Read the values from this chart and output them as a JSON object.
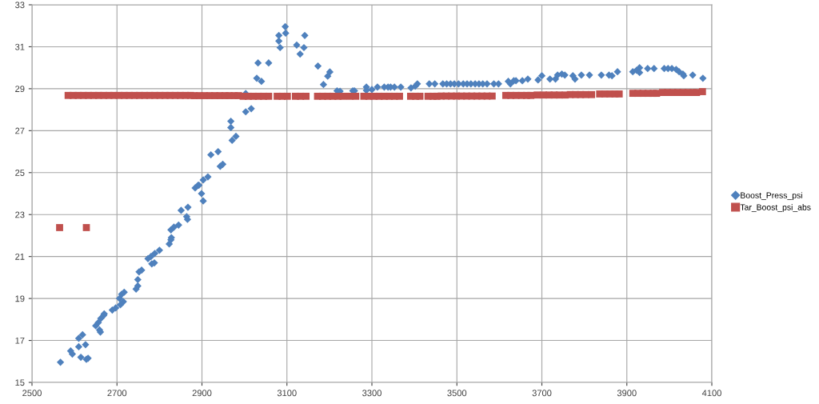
{
  "chart_data": {
    "type": "scatter",
    "xlim": [
      2500,
      4100
    ],
    "ylim": [
      15,
      33
    ],
    "xticks": [
      2500,
      2700,
      2900,
      3100,
      3300,
      3500,
      3700,
      3900,
      4100
    ],
    "yticks": [
      15,
      17,
      19,
      21,
      23,
      25,
      27,
      29,
      31,
      33
    ],
    "grid": true,
    "legend": "right",
    "series": [
      {
        "name": "Boost_Press_psi",
        "color": "#4f81bd",
        "marker": "diamond",
        "x": [
          2567,
          2591,
          2595,
          2610,
          2619,
          2610,
          2615,
          2626,
          2632,
          2628,
          2650,
          2656,
          2662,
          2669,
          2670,
          2659,
          2661,
          2689,
          2697,
          2706,
          2711,
          2717,
          2708,
          2715,
          2745,
          2749,
          2749,
          2752,
          2758,
          2773,
          2780,
          2789,
          2800,
          2782,
          2788,
          2823,
          2827,
          2828,
          2827,
          2834,
          2845,
          2851,
          2867,
          2864,
          2866,
          2884,
          2891,
          2893,
          2899,
          2903,
          2903,
          2914,
          2943,
          2949,
          2921,
          2938,
          2968,
          2968,
          2971,
          2980,
          3003,
          3003,
          3016,
          3029,
          3040,
          3032,
          3057,
          3081,
          3081,
          3084,
          3096,
          3097,
          3123,
          3140,
          3131,
          3142,
          3173,
          3186,
          3196,
          3201,
          3218,
          3225,
          3255,
          3259,
          3287,
          3287,
          3300,
          3313,
          3329,
          3338,
          3344,
          3353,
          3368,
          3392,
          3402,
          3407,
          3435,
          3448,
          3467,
          3476,
          3485,
          3494,
          3504,
          3515,
          3524,
          3533,
          3543,
          3552,
          3561,
          3571,
          3587,
          3598,
          3621,
          3634,
          3626,
          3639,
          3654,
          3667,
          3691,
          3700,
          3719,
          3732,
          3737,
          3747,
          3754,
          3773,
          3778,
          3793,
          3812,
          3840,
          3858,
          3865,
          3878,
          3914,
          3923,
          3930,
          3930,
          3949,
          3964,
          3988,
          3997,
          4006,
          4016,
          4023,
          4032,
          4034,
          4055,
          4079
        ],
        "values": [
          15.96,
          16.5,
          16.35,
          17.1,
          17.27,
          16.7,
          16.2,
          16.8,
          16.15,
          16.1,
          17.7,
          17.85,
          18.05,
          18.2,
          18.27,
          17.5,
          17.4,
          18.45,
          18.55,
          19.0,
          19.2,
          19.3,
          18.7,
          18.85,
          19.45,
          19.6,
          19.9,
          20.27,
          20.35,
          20.9,
          21.0,
          21.15,
          21.3,
          20.65,
          20.7,
          21.6,
          21.8,
          21.9,
          22.27,
          22.4,
          22.5,
          23.2,
          23.35,
          22.9,
          22.77,
          24.27,
          24.4,
          24.4,
          24.0,
          23.65,
          24.65,
          24.8,
          25.3,
          25.4,
          25.85,
          26.0,
          27.45,
          27.15,
          26.54,
          26.73,
          28.77,
          27.9,
          28.05,
          29.5,
          29.35,
          30.23,
          30.23,
          31.54,
          31.27,
          30.96,
          31.96,
          31.65,
          31.08,
          30.96,
          30.65,
          31.54,
          30.08,
          29.2,
          29.6,
          29.8,
          28.9,
          28.88,
          28.9,
          28.9,
          29.08,
          28.92,
          28.96,
          29.08,
          29.08,
          29.08,
          29.08,
          29.08,
          29.08,
          29.04,
          29.12,
          29.23,
          29.23,
          29.23,
          29.23,
          29.23,
          29.23,
          29.23,
          29.23,
          29.23,
          29.23,
          29.23,
          29.23,
          29.23,
          29.23,
          29.23,
          29.23,
          29.23,
          29.35,
          29.38,
          29.23,
          29.38,
          29.38,
          29.46,
          29.42,
          29.62,
          29.46,
          29.46,
          29.65,
          29.7,
          29.65,
          29.62,
          29.46,
          29.65,
          29.65,
          29.65,
          29.65,
          29.62,
          29.81,
          29.81,
          29.88,
          30.0,
          29.77,
          29.96,
          29.96,
          29.96,
          29.96,
          29.96,
          29.92,
          29.81,
          29.7,
          29.62,
          29.65,
          29.5
        ]
      },
      {
        "name": "Tar_Boost_psi_abs",
        "color": "#c0504d",
        "marker": "square",
        "x": [
          2565,
          2628,
          2585,
          2597,
          2609,
          2621,
          2633,
          2645,
          2657,
          2669,
          2681,
          2693,
          2705,
          2717,
          2729,
          2741,
          2753,
          2765,
          2777,
          2789,
          2801,
          2813,
          2825,
          2837,
          2849,
          2861,
          2873,
          2882,
          2894,
          2906,
          2918,
          2930,
          2942,
          2954,
          2964,
          2976,
          2986,
          2997,
          3009,
          3021,
          3033,
          3045,
          3057,
          3077,
          3089,
          3101,
          3120,
          3132,
          3145,
          3172,
          3184,
          3196,
          3208,
          3220,
          3232,
          3248,
          3262,
          3281,
          3293,
          3305,
          3317,
          3329,
          3341,
          3353,
          3365,
          3391,
          3403,
          3413,
          3432,
          3444,
          3453,
          3463,
          3475,
          3487,
          3499,
          3511,
          3523,
          3535,
          3547,
          3559,
          3571,
          3583,
          3615,
          3627,
          3639,
          3652,
          3664,
          3674,
          3689,
          3704,
          3717,
          3729,
          3741,
          3755,
          3767,
          3779,
          3791,
          3803,
          3817,
          3836,
          3848,
          3860,
          3872,
          3882,
          3914,
          3926,
          3938,
          3950,
          3962,
          3970,
          3984,
          3996,
          4008,
          4020,
          4032,
          4044,
          4056,
          4064,
          4078
        ],
        "values": [
          22.38,
          22.38,
          28.68,
          28.68,
          28.68,
          28.68,
          28.68,
          28.68,
          28.68,
          28.68,
          28.68,
          28.68,
          28.68,
          28.68,
          28.68,
          28.68,
          28.68,
          28.68,
          28.68,
          28.68,
          28.68,
          28.68,
          28.68,
          28.68,
          28.68,
          28.68,
          28.68,
          28.67,
          28.67,
          28.67,
          28.67,
          28.67,
          28.67,
          28.67,
          28.67,
          28.67,
          28.67,
          28.64,
          28.64,
          28.64,
          28.64,
          28.64,
          28.64,
          28.64,
          28.64,
          28.64,
          28.64,
          28.64,
          28.64,
          28.64,
          28.64,
          28.64,
          28.64,
          28.64,
          28.64,
          28.64,
          28.64,
          28.64,
          28.64,
          28.64,
          28.64,
          28.64,
          28.64,
          28.64,
          28.64,
          28.64,
          28.64,
          28.64,
          28.64,
          28.64,
          28.64,
          28.65,
          28.65,
          28.65,
          28.65,
          28.65,
          28.65,
          28.65,
          28.65,
          28.65,
          28.65,
          28.65,
          28.68,
          28.68,
          28.68,
          28.68,
          28.68,
          28.68,
          28.7,
          28.7,
          28.7,
          28.7,
          28.7,
          28.7,
          28.72,
          28.72,
          28.72,
          28.72,
          28.72,
          28.75,
          28.75,
          28.75,
          28.75,
          28.75,
          28.78,
          28.78,
          28.78,
          28.78,
          28.78,
          28.78,
          28.82,
          28.82,
          28.82,
          28.82,
          28.82,
          28.82,
          28.82,
          28.82,
          28.86
        ]
      }
    ]
  }
}
